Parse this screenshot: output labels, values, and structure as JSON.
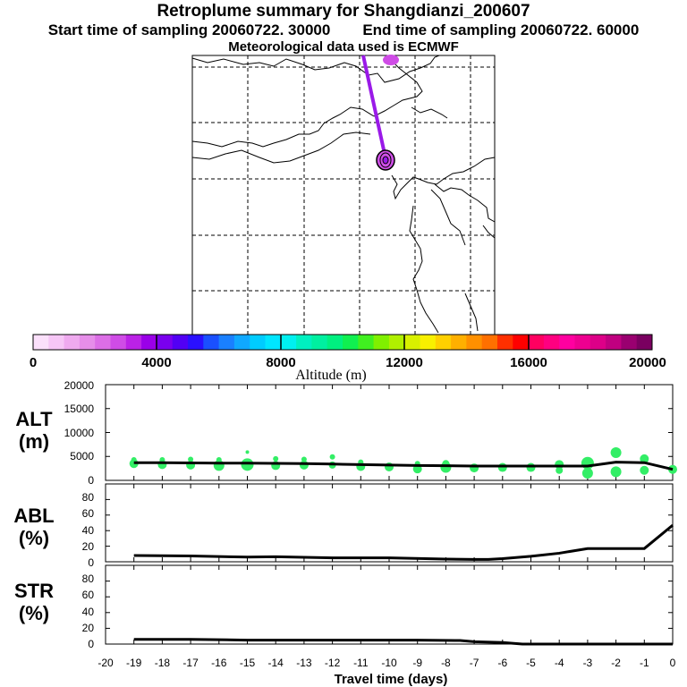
{
  "titles": {
    "line1": "Retroplume summary for Shangdianzi_200607",
    "line2a": "Start time of sampling 20060722. 30000",
    "line2b": "End time of sampling 20060722. 60000",
    "line3": "Meteorological data used is ECMWF"
  },
  "colorbar": {
    "label": "Altitude (m)",
    "ticks": [
      "0",
      "4000",
      "8000",
      "12000",
      "16000",
      "20000"
    ],
    "colors": [
      "#fbe0fb",
      "#f6c6f6",
      "#efaaef",
      "#e68ee9",
      "#dc6ee6",
      "#cf4ce6",
      "#bb22e6",
      "#9a00e8",
      "#7a00ee",
      "#5200f4",
      "#2a10ff",
      "#1a50ff",
      "#1a80ff",
      "#10a8ff",
      "#00ccff",
      "#00e6ff",
      "#00f0f0",
      "#00f0c0",
      "#00f0a0",
      "#00f080",
      "#10f050",
      "#40f020",
      "#80f000",
      "#b0f000",
      "#d8f000",
      "#f8f000",
      "#ffd000",
      "#ffb000",
      "#ff9000",
      "#ff7000",
      "#ff3000",
      "#ff0000",
      "#ff0060",
      "#ff0080",
      "#ff00a0",
      "#ee0090",
      "#dd0088",
      "#c00080",
      "#9a0070",
      "#7a0060"
    ]
  },
  "chart_data": [
    {
      "type": "scatter",
      "panel": "ALT",
      "ylabel": "ALT\n(m)",
      "ylabel_line1": "ALT",
      "ylabel_line2": "(m)",
      "ylim": [
        0,
        20000
      ],
      "yticks": [
        "20000",
        "15000",
        "10000",
        "5000",
        "0"
      ],
      "line": {
        "x": [
          -19,
          -18,
          -17,
          -16,
          -15,
          -14,
          -13,
          -12,
          -11,
          -10,
          -9,
          -8,
          -7,
          -6,
          -5,
          -4,
          -3,
          -2,
          -1,
          0
        ],
        "y": [
          3700,
          3700,
          3650,
          3600,
          3600,
          3550,
          3500,
          3400,
          3300,
          3200,
          3100,
          3050,
          3000,
          3000,
          3000,
          3000,
          3000,
          3800,
          3700,
          2300
        ]
      },
      "points": [
        {
          "x": -19,
          "y": 3500,
          "s": 5
        },
        {
          "x": -19,
          "y": 4300,
          "s": 3
        },
        {
          "x": -18,
          "y": 3300,
          "s": 5
        },
        {
          "x": -18,
          "y": 4300,
          "s": 3
        },
        {
          "x": -17,
          "y": 3200,
          "s": 5
        },
        {
          "x": -17,
          "y": 4400,
          "s": 3
        },
        {
          "x": -16,
          "y": 3100,
          "s": 6
        },
        {
          "x": -16,
          "y": 4300,
          "s": 3
        },
        {
          "x": -15,
          "y": 3300,
          "s": 7
        },
        {
          "x": -15,
          "y": 5900,
          "s": 2
        },
        {
          "x": -14,
          "y": 3100,
          "s": 5
        },
        {
          "x": -14,
          "y": 4500,
          "s": 3
        },
        {
          "x": -13,
          "y": 3200,
          "s": 5
        },
        {
          "x": -13,
          "y": 4400,
          "s": 3
        },
        {
          "x": -12,
          "y": 3200,
          "s": 4
        },
        {
          "x": -12,
          "y": 4900,
          "s": 3
        },
        {
          "x": -11,
          "y": 2900,
          "s": 5
        },
        {
          "x": -11,
          "y": 3800,
          "s": 3
        },
        {
          "x": -10,
          "y": 2800,
          "s": 5
        },
        {
          "x": -9,
          "y": 2400,
          "s": 5
        },
        {
          "x": -9,
          "y": 3500,
          "s": 3
        },
        {
          "x": -8,
          "y": 2700,
          "s": 6
        },
        {
          "x": -8,
          "y": 3500,
          "s": 4
        },
        {
          "x": -7,
          "y": 2600,
          "s": 5
        },
        {
          "x": -6,
          "y": 2700,
          "s": 5
        },
        {
          "x": -5,
          "y": 2700,
          "s": 5
        },
        {
          "x": -4,
          "y": 2100,
          "s": 4
        },
        {
          "x": -4,
          "y": 3300,
          "s": 5
        },
        {
          "x": -3,
          "y": 1500,
          "s": 6
        },
        {
          "x": -3,
          "y": 3600,
          "s": 7
        },
        {
          "x": -2,
          "y": 1800,
          "s": 6
        },
        {
          "x": -2,
          "y": 5800,
          "s": 6
        },
        {
          "x": -1,
          "y": 2100,
          "s": 5
        },
        {
          "x": -1,
          "y": 4500,
          "s": 5
        },
        {
          "x": 0,
          "y": 2300,
          "s": 5
        }
      ]
    },
    {
      "type": "line",
      "panel": "ABL",
      "ylabel_line1": "ABL",
      "ylabel_line2": "(%)",
      "ylim": [
        0,
        100
      ],
      "yticks": [
        "80",
        "60",
        "40",
        "20",
        "0"
      ],
      "x": [
        -19,
        -17,
        -15,
        -14,
        -12,
        -10,
        -8,
        -7,
        -6.5,
        -6,
        -5,
        -4,
        -3,
        -2,
        -1,
        0
      ],
      "y": [
        8,
        7.5,
        6,
        6.5,
        5,
        5,
        3.5,
        3,
        3,
        4,
        7,
        11,
        17,
        17,
        17,
        47
      ]
    },
    {
      "type": "line",
      "panel": "STR",
      "ylabel_line1": "STR",
      "ylabel_line2": "(%)",
      "ylim": [
        0,
        100
      ],
      "yticks": [
        "80",
        "60",
        "40",
        "20",
        "0"
      ],
      "x": [
        -19,
        -17,
        -15,
        -13,
        -11,
        -9,
        -7.5,
        -7,
        -6,
        -5.3,
        -4,
        0
      ],
      "y": [
        6,
        6,
        5,
        5,
        5,
        5,
        4.5,
        3,
        2,
        0,
        0,
        0
      ]
    }
  ],
  "x_axis": {
    "label": "Travel time (days)",
    "ticks": [
      "-20",
      "-19",
      "-18",
      "-17",
      "-16",
      "-15",
      "-14",
      "-13",
      "-12",
      "-11",
      "-10",
      "-9",
      "-8",
      "-7",
      "-6",
      "-5",
      "-4",
      "-3",
      "-2",
      "-1",
      "0"
    ]
  },
  "map": {
    "trajectory_color": "#9a1ae8",
    "marker_color": "#cf4ce6"
  }
}
